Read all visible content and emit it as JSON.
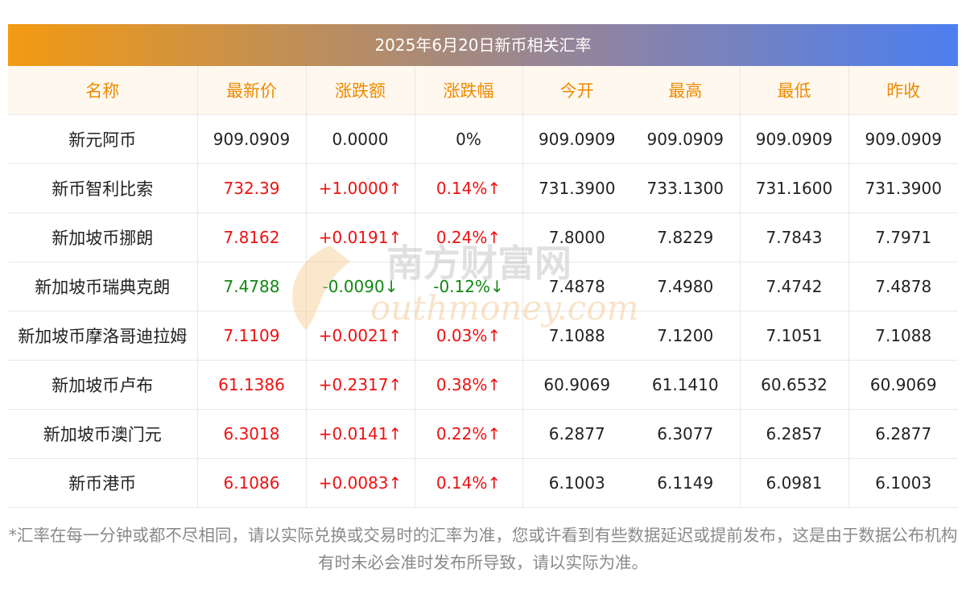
{
  "title": "2025年6月20日新币相关汇率",
  "columns": [
    "名称",
    "最新价",
    "涨跌额",
    "涨跌幅",
    "今开",
    "最高",
    "最低",
    "昨收"
  ],
  "rows": [
    {
      "name": "新元阿币",
      "latest": "909.0909",
      "change": "0.0000",
      "pct": "0%",
      "open": "909.0909",
      "high": "909.0909",
      "low": "909.0909",
      "prev_close": "909.0909",
      "trend": "flat"
    },
    {
      "name": "新币智利比索",
      "latest": "732.39",
      "change": "+1.0000↑",
      "pct": "0.14%↑",
      "open": "731.3900",
      "high": "733.1300",
      "low": "731.1600",
      "prev_close": "731.3900",
      "trend": "up"
    },
    {
      "name": "新加坡币挪朗",
      "latest": "7.8162",
      "change": "+0.0191↑",
      "pct": "0.24%↑",
      "open": "7.8000",
      "high": "7.8229",
      "low": "7.7843",
      "prev_close": "7.7971",
      "trend": "up"
    },
    {
      "name": "新加坡币瑞典克朗",
      "latest": "7.4788",
      "change": "-0.0090↓",
      "pct": "-0.12%↓",
      "open": "7.4878",
      "high": "7.4980",
      "low": "7.4742",
      "prev_close": "7.4878",
      "trend": "down"
    },
    {
      "name": "新加坡币摩洛哥迪拉姆",
      "latest": "7.1109",
      "change": "+0.0021↑",
      "pct": "0.03%↑",
      "open": "7.1088",
      "high": "7.1200",
      "low": "7.1051",
      "prev_close": "7.1088",
      "trend": "up"
    },
    {
      "name": "新加坡币卢布",
      "latest": "61.1386",
      "change": "+0.2317↑",
      "pct": "0.38%↑",
      "open": "60.9069",
      "high": "61.1410",
      "low": "60.6532",
      "prev_close": "60.9069",
      "trend": "up"
    },
    {
      "name": "新加坡币澳门元",
      "latest": "6.3018",
      "change": "+0.0141↑",
      "pct": "0.22%↑",
      "open": "6.2877",
      "high": "6.3077",
      "low": "6.2857",
      "prev_close": "6.2877",
      "trend": "up"
    },
    {
      "name": "新币港币",
      "latest": "6.1086",
      "change": "+0.0083↑",
      "pct": "0.14%↑",
      "open": "6.1003",
      "high": "6.1149",
      "low": "6.0981",
      "prev_close": "6.1003",
      "trend": "up"
    }
  ],
  "footnote": "*汇率在每一分钟或都不尽相同，请以实际兑换或交易时的汇率为准，您或许看到有些数据延迟或提前发布，这是由于数据公布机构有时未必会准时发布所导致，请以实际为准。",
  "watermark": {
    "cn": "南方财富网",
    "en": "outhmoney.com"
  },
  "colors": {
    "up": "#ee1111",
    "down": "#118811",
    "header_text": "#ef8a00",
    "header_bg": "#fff8ef",
    "gradient_start": "#f39a11",
    "gradient_end": "#4c7ff0"
  }
}
